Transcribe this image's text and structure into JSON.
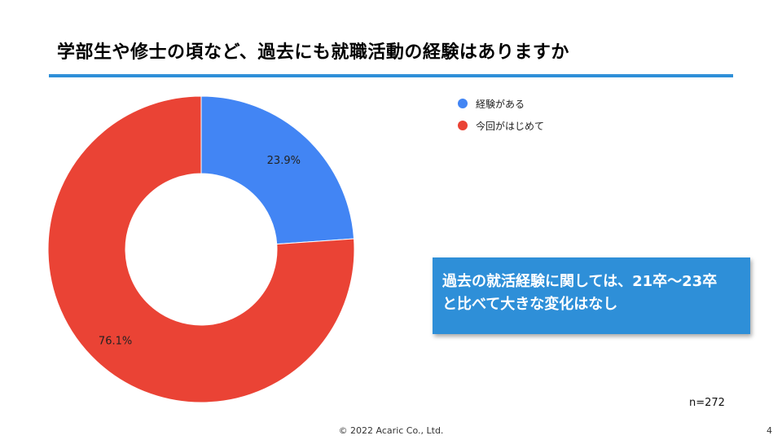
{
  "slide": {
    "title": "学部生や修士の頃など、過去にも就職活動の経験はありますか",
    "callout_line1": "過去の就活経験に関しては、21卒〜23卒",
    "callout_line2": "と比べて大きな変化はなし",
    "sample_size": "n=272",
    "footer": "© 2022 Acaric Co., Ltd.",
    "page_number": "4"
  },
  "chart_data": {
    "type": "pie",
    "donut": true,
    "title": "",
    "legend_position": "top-right",
    "slices": [
      {
        "label": "経験がある",
        "value": 23.9,
        "display": "23.9%",
        "color": "#4285f4"
      },
      {
        "label": "今回がはじめて",
        "value": 76.1,
        "display": "76.1%",
        "color": "#ea4335"
      }
    ]
  }
}
